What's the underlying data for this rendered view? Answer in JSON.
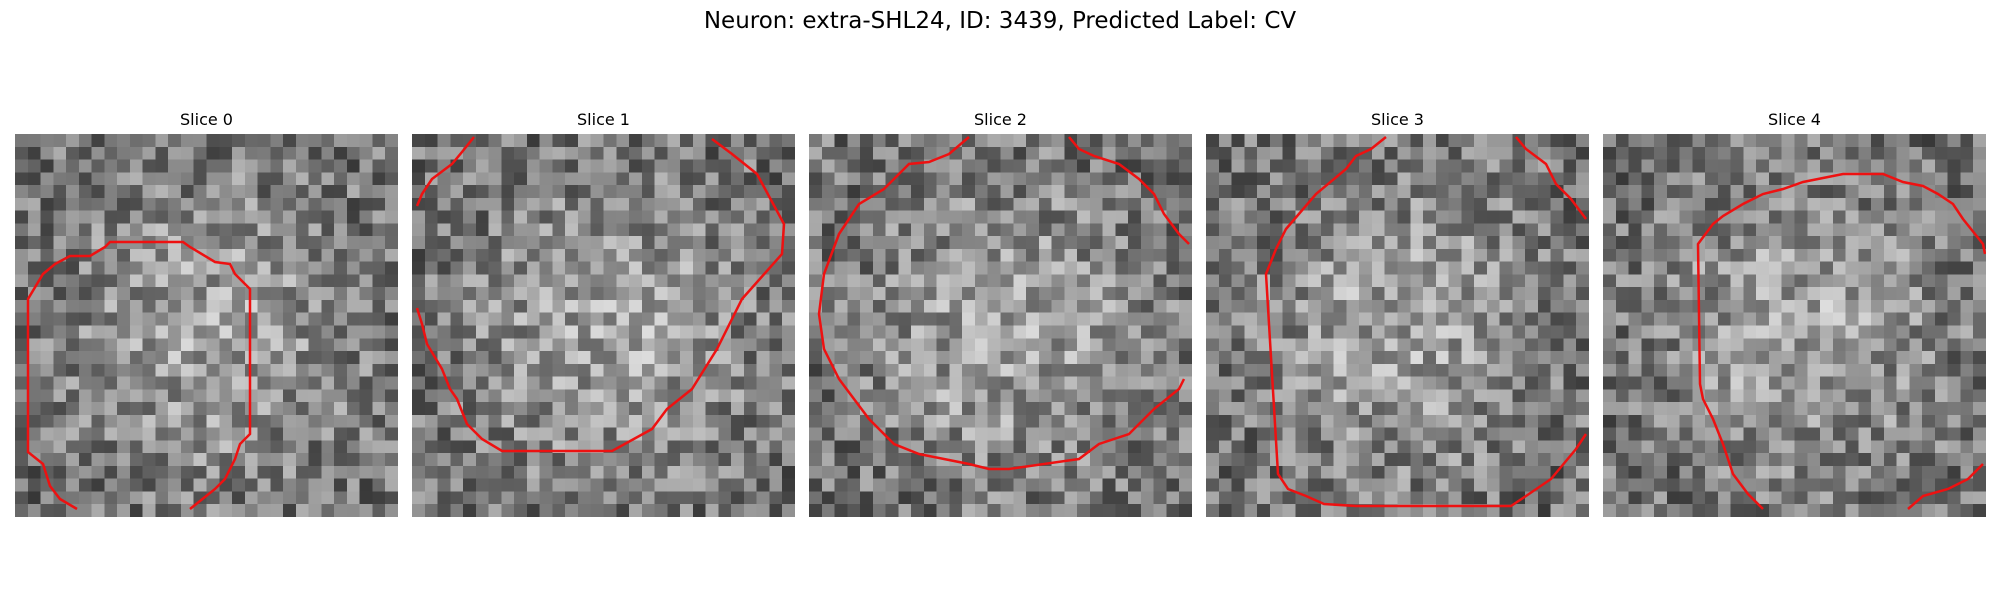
{
  "figure": {
    "title": "Neuron: extra-SHL24, ID: 3439, Predicted Label: CV",
    "contour_color": "#ee1111"
  },
  "slices": [
    {
      "title": "Slice 0",
      "image_content": "grayscale 3D microscopy patch with red boundary contour around a neuron cell body"
    },
    {
      "title": "Slice 1",
      "image_content": "grayscale 3D microscopy patch with red boundary contour around a neuron cell body"
    },
    {
      "title": "Slice 2",
      "image_content": "grayscale 3D microscopy patch with red boundary contour around a neuron cell body"
    },
    {
      "title": "Slice 3",
      "image_content": "grayscale 3D microscopy patch with red boundary contour around a neuron cell body"
    },
    {
      "title": "Slice 4",
      "image_content": "grayscale 3D microscopy patch with red boundary contour around a neuron cell body"
    }
  ]
}
